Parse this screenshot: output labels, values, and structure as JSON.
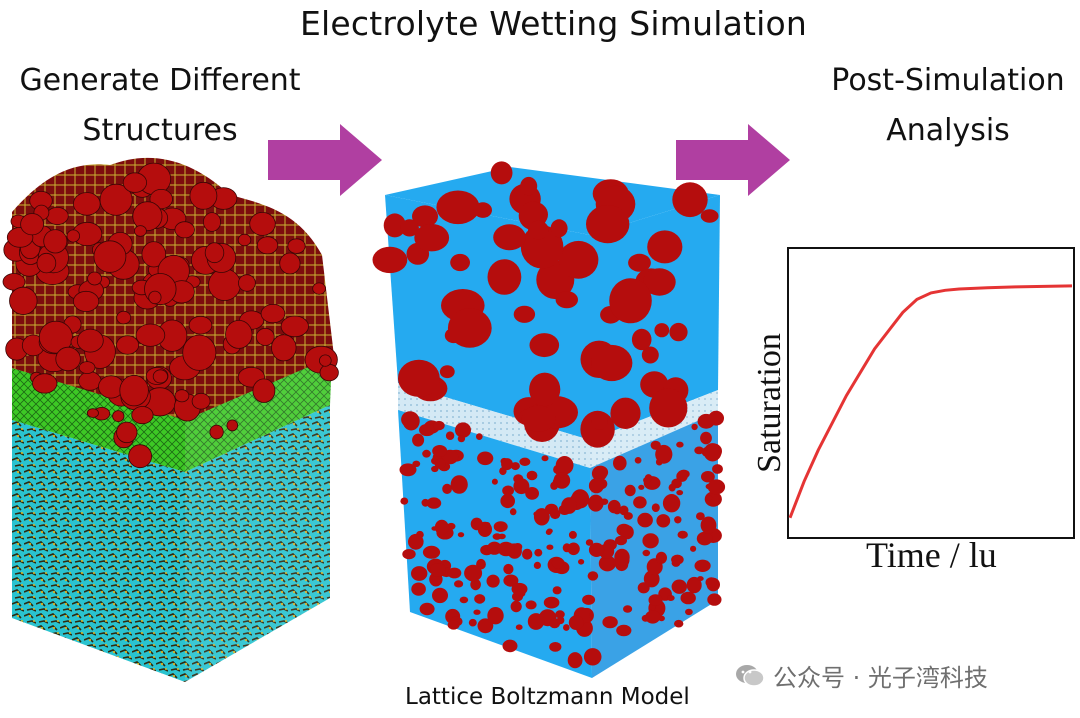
{
  "title": "Electrolyte Wetting Simulation",
  "steps": {
    "left": {
      "line1": "Generate Different",
      "line2": "Structures"
    },
    "right": {
      "line1": "Post-Simulation",
      "line2": "Analysis"
    }
  },
  "middle_caption": "Lattice Boltzmann Model",
  "watermark": {
    "text": "公众号 · 光子湾科技",
    "icon": "wechat-icon"
  },
  "colors": {
    "arrow": "#b03fa1",
    "red_particles": "#b50d0d",
    "electrolyte": "#25aaf0",
    "green_layer": "#3dc825",
    "cyan_layer": "#2ac3cf",
    "curve": "#e53434"
  },
  "chart_data": {
    "type": "line",
    "title": "",
    "xlabel": "Time / lu",
    "ylabel": "Saturation",
    "x_ticks": [],
    "y_ticks": [],
    "series": [
      {
        "x": [
          0,
          0.05,
          0.1,
          0.2,
          0.3,
          0.4,
          0.45,
          0.5,
          0.55,
          0.6,
          0.7,
          0.8,
          0.9,
          1.0
        ],
        "y": [
          0.07,
          0.21,
          0.33,
          0.54,
          0.72,
          0.86,
          0.91,
          0.935,
          0.945,
          0.95,
          0.955,
          0.958,
          0.96,
          0.962
        ]
      }
    ],
    "xlim": [
      0,
      1
    ],
    "ylim": [
      0,
      1.1
    ],
    "grid": false,
    "legend": "none"
  }
}
